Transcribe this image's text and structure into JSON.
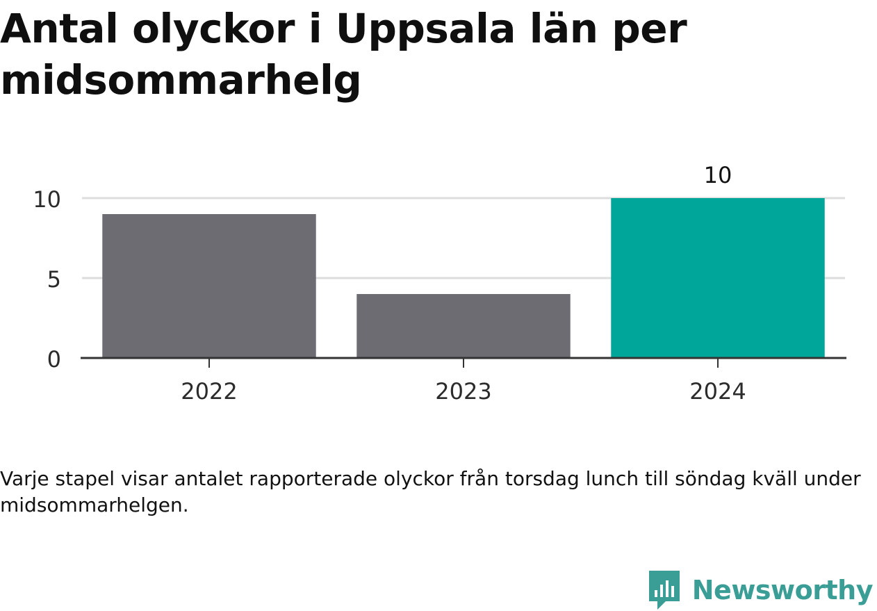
{
  "title": "Antal olyckor i Uppsala län per midsommarhelg",
  "caption": "Varje stapel visar antalet rapporterade olyckor från torsdag lunch till söndag kväll under midsommarhelgen.",
  "brand": {
    "name": "Newsworthy",
    "logo_icon": "newsworthy-logo-icon",
    "color": "#3a9d96"
  },
  "chart_data": {
    "type": "bar",
    "categories": [
      "2022",
      "2023",
      "2024"
    ],
    "values": [
      9,
      4,
      10
    ],
    "highlight_index": 2,
    "highlight_label": "10",
    "colors": {
      "default": "#6d6c72",
      "highlight": "#00a69a",
      "grid": "#dddddd",
      "axis": "#333333"
    },
    "y_ticks": [
      "0",
      "5",
      "10"
    ],
    "ylim": [
      0,
      10
    ],
    "grid": true,
    "xlabel": "",
    "ylabel": ""
  }
}
